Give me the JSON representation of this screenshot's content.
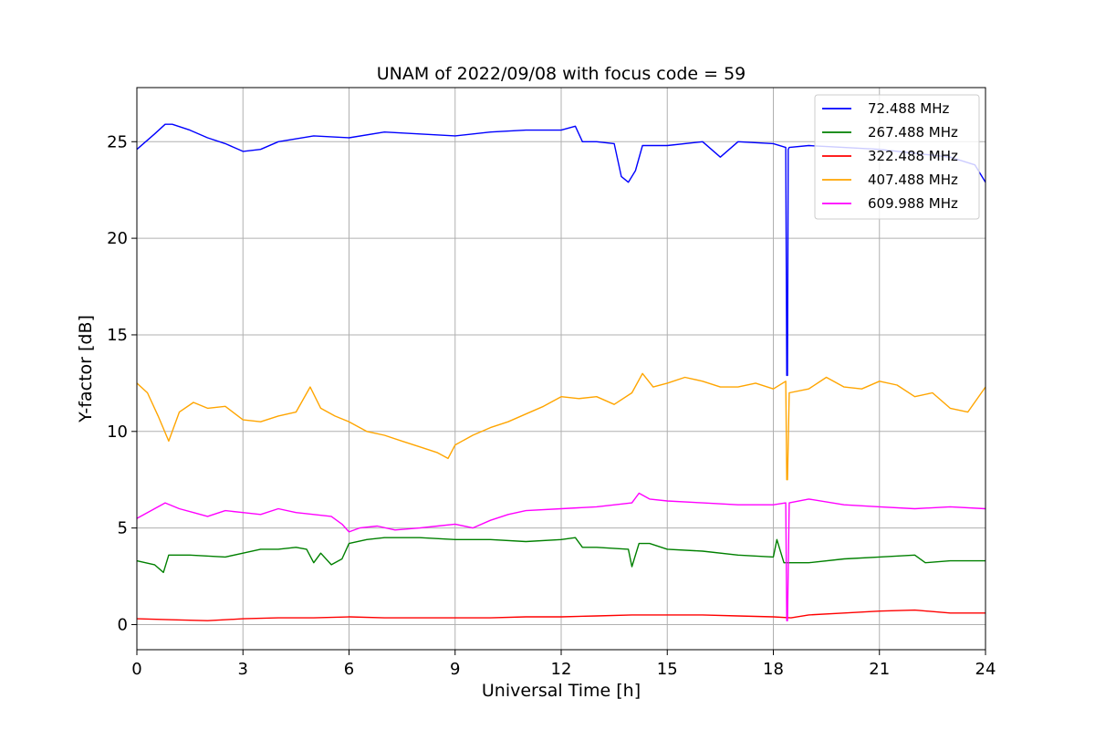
{
  "chart_data": {
    "type": "line",
    "title": "UNAM of 2022/09/08 with focus code = 59",
    "xlabel": "Universal Time [h]",
    "ylabel": "Y-factor [dB]",
    "xlim": [
      0,
      24
    ],
    "ylim": [
      -1.3,
      27.8
    ],
    "xticks": [
      0,
      3,
      6,
      9,
      12,
      15,
      18,
      21,
      24
    ],
    "yticks": [
      0,
      5,
      10,
      15,
      20,
      25
    ],
    "grid": true,
    "legend_position": "top-right",
    "series": [
      {
        "name": "72.488 MHz",
        "color": "#0000ff",
        "x": [
          0,
          0.5,
          0.8,
          1.0,
          1.5,
          2.0,
          2.5,
          3.0,
          3.5,
          4.0,
          5.0,
          6.0,
          7.0,
          8.0,
          9.0,
          10.0,
          11.0,
          12.0,
          12.4,
          12.6,
          13.0,
          13.5,
          13.7,
          13.9,
          14.1,
          14.3,
          15.0,
          16.0,
          16.5,
          17.0,
          18.0,
          18.35,
          18.38,
          18.4,
          18.42,
          18.45,
          19.0,
          20.0,
          21.0,
          22.0,
          23.0,
          23.7,
          24.0
        ],
        "y": [
          24.6,
          25.4,
          25.9,
          25.9,
          25.6,
          25.2,
          24.9,
          24.5,
          24.6,
          25.0,
          25.3,
          25.2,
          25.5,
          25.4,
          25.3,
          25.5,
          25.6,
          25.6,
          25.8,
          25.0,
          25.0,
          24.9,
          23.2,
          22.9,
          23.5,
          24.8,
          24.8,
          25.0,
          24.2,
          25.0,
          24.9,
          24.7,
          12.9,
          12.9,
          24.6,
          24.7,
          24.8,
          24.7,
          24.6,
          24.4,
          24.2,
          23.8,
          22.9
        ]
      },
      {
        "name": "267.488 MHz",
        "color": "#008000",
        "x": [
          0,
          0.5,
          0.75,
          0.9,
          1.5,
          2.5,
          3.0,
          3.5,
          4.0,
          4.5,
          4.8,
          5.0,
          5.2,
          5.5,
          5.8,
          6.0,
          6.5,
          7.0,
          8.0,
          9.0,
          10.0,
          11.0,
          12.0,
          12.4,
          12.6,
          13.0,
          13.9,
          14.0,
          14.2,
          14.5,
          15.0,
          16.0,
          17.0,
          18.0,
          18.1,
          18.3,
          19.0,
          20.0,
          21.0,
          22.0,
          22.3,
          23.0,
          24.0
        ],
        "y": [
          3.3,
          3.1,
          2.7,
          3.6,
          3.6,
          3.5,
          3.7,
          3.9,
          3.9,
          4.0,
          3.9,
          3.2,
          3.7,
          3.1,
          3.4,
          4.2,
          4.4,
          4.5,
          4.5,
          4.4,
          4.4,
          4.3,
          4.4,
          4.5,
          4.0,
          4.0,
          3.9,
          3.0,
          4.2,
          4.2,
          3.9,
          3.8,
          3.6,
          3.5,
          4.4,
          3.2,
          3.2,
          3.4,
          3.5,
          3.6,
          3.2,
          3.3,
          3.3
        ]
      },
      {
        "name": "322.488 MHz",
        "color": "#ff0000",
        "x": [
          0,
          1.0,
          2.0,
          3.0,
          4.0,
          5.0,
          6.0,
          7.0,
          8.0,
          9.0,
          10.0,
          11.0,
          12.0,
          13.0,
          14.0,
          15.0,
          16.0,
          17.0,
          18.0,
          18.5,
          19.0,
          20.0,
          21.0,
          22.0,
          23.0,
          24.0
        ],
        "y": [
          0.3,
          0.25,
          0.2,
          0.3,
          0.35,
          0.35,
          0.4,
          0.35,
          0.35,
          0.35,
          0.35,
          0.4,
          0.4,
          0.45,
          0.5,
          0.5,
          0.5,
          0.45,
          0.4,
          0.35,
          0.5,
          0.6,
          0.7,
          0.75,
          0.6,
          0.6
        ]
      },
      {
        "name": "407.488 MHz",
        "color": "#ffa500",
        "x": [
          0,
          0.3,
          0.6,
          0.9,
          1.2,
          1.6,
          2.0,
          2.5,
          3.0,
          3.5,
          4.0,
          4.5,
          4.9,
          5.2,
          5.6,
          6.0,
          6.5,
          7.0,
          7.5,
          8.0,
          8.5,
          8.8,
          9.0,
          9.5,
          10.0,
          10.5,
          11.0,
          11.5,
          12.0,
          12.5,
          13.0,
          13.5,
          14.0,
          14.3,
          14.6,
          15.0,
          15.5,
          16.0,
          16.5,
          17.0,
          17.5,
          18.0,
          18.35,
          18.38,
          18.4,
          18.45,
          19.0,
          19.5,
          20.0,
          20.5,
          21.0,
          21.5,
          22.0,
          22.5,
          23.0,
          23.5,
          24.0
        ],
        "y": [
          12.5,
          12.0,
          10.8,
          9.5,
          11.0,
          11.5,
          11.2,
          11.3,
          10.6,
          10.5,
          10.8,
          11.0,
          12.3,
          11.2,
          10.8,
          10.5,
          10.0,
          9.8,
          9.5,
          9.2,
          8.9,
          8.6,
          9.3,
          9.8,
          10.2,
          10.5,
          10.9,
          11.3,
          11.8,
          11.7,
          11.8,
          11.4,
          12.0,
          13.0,
          12.3,
          12.5,
          12.8,
          12.6,
          12.3,
          12.3,
          12.5,
          12.2,
          12.6,
          7.5,
          7.5,
          12.0,
          12.2,
          12.8,
          12.3,
          12.2,
          12.6,
          12.4,
          11.8,
          12.0,
          11.2,
          11.0,
          12.3
        ]
      },
      {
        "name": "609.988 MHz",
        "color": "#ff00ff",
        "x": [
          0,
          0.4,
          0.8,
          1.2,
          1.6,
          2.0,
          2.5,
          3.0,
          3.5,
          4.0,
          4.5,
          5.0,
          5.5,
          5.8,
          6.0,
          6.3,
          6.8,
          7.3,
          8.0,
          8.5,
          9.0,
          9.5,
          10.0,
          10.5,
          11.0,
          12.0,
          13.0,
          14.0,
          14.2,
          14.5,
          15.0,
          16.0,
          17.0,
          18.0,
          18.35,
          18.38,
          18.4,
          18.45,
          19.0,
          20.0,
          21.0,
          22.0,
          23.0,
          24.0
        ],
        "y": [
          5.5,
          5.9,
          6.3,
          6.0,
          5.8,
          5.6,
          5.9,
          5.8,
          5.7,
          6.0,
          5.8,
          5.7,
          5.6,
          5.2,
          4.8,
          5.0,
          5.1,
          4.9,
          5.0,
          5.1,
          5.2,
          5.0,
          5.4,
          5.7,
          5.9,
          6.0,
          6.1,
          6.3,
          6.8,
          6.5,
          6.4,
          6.3,
          6.2,
          6.2,
          6.3,
          0.2,
          0.2,
          6.3,
          6.5,
          6.2,
          6.1,
          6.0,
          6.1,
          6.0
        ]
      }
    ]
  }
}
